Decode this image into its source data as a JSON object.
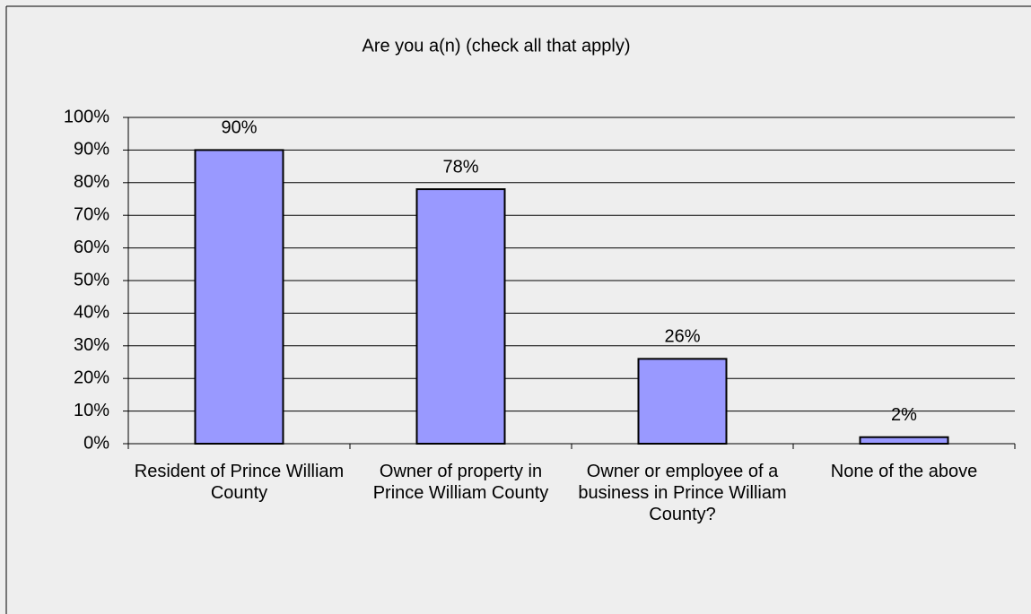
{
  "chart_data": {
    "type": "bar",
    "title": "Are you a(n) (check all that apply)",
    "categories": [
      "Resident of Prince William County",
      "Owner of property in Prince William County",
      "Owner or employee of a business in Prince William County?",
      "None of the above"
    ],
    "values": [
      90,
      78,
      26,
      2
    ],
    "value_labels": [
      "90%",
      "78%",
      "26%",
      "2%"
    ],
    "color": "#9999ff",
    "ylim": [
      0,
      100
    ],
    "yticks": [
      {
        "value": 0,
        "label": "0%"
      },
      {
        "value": 10,
        "label": "10%"
      },
      {
        "value": 20,
        "label": "20%"
      },
      {
        "value": 30,
        "label": "30%"
      },
      {
        "value": 40,
        "label": "40%"
      },
      {
        "value": 50,
        "label": "50%"
      },
      {
        "value": 60,
        "label": "60%"
      },
      {
        "value": 70,
        "label": "70%"
      },
      {
        "value": 80,
        "label": "80%"
      },
      {
        "value": 90,
        "label": "90%"
      },
      {
        "value": 100,
        "label": "100%"
      }
    ],
    "grid": true
  }
}
